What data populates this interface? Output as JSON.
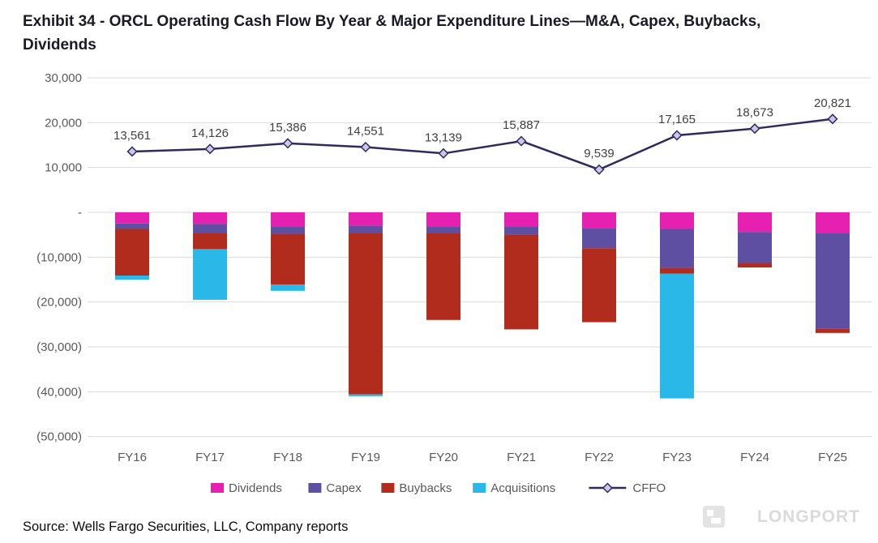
{
  "title": "Exhibit 34 - ORCL Operating Cash Flow By Year & Major Expenditure Lines—M&A, Capex, Buybacks, Dividends",
  "source": "Source: Wells Fargo Securities, LLC, Company reports",
  "watermark": "LONGPORT",
  "colors": {
    "dividends": "#E620B0",
    "capex": "#5E4FA2",
    "buybacks": "#B22C1E",
    "acquisitions": "#29B8E8",
    "cffo_line": "#2E2A5E",
    "cffo_marker_fill": "#CCC7E8",
    "grid": "#D9D9D9",
    "axis_text": "#595959",
    "data_label_text": "#404040"
  },
  "chart_data": {
    "type": "combo: stacked bar (negative outflows) + line (CFFO), values in $ millions",
    "title": "ORCL Operating Cash Flow By Year & Major Expenditure Lines",
    "categories": [
      "FY16",
      "FY17",
      "FY18",
      "FY19",
      "FY20",
      "FY21",
      "FY22",
      "FY23",
      "FY24",
      "FY25"
    ],
    "bar_series": [
      {
        "name": "Dividends",
        "color": "#E620B0",
        "values": [
          -2500,
          -2600,
          -3100,
          -3000,
          -3100,
          -3100,
          -3500,
          -3700,
          -4400,
          -4700
        ]
      },
      {
        "name": "Capex",
        "color": "#5E4FA2",
        "values": [
          -1200,
          -2000,
          -1700,
          -1700,
          -1600,
          -1800,
          -4500,
          -8700,
          -6900,
          -21200
        ]
      },
      {
        "name": "Buybacks",
        "color": "#B22C1E",
        "values": [
          -10400,
          -3600,
          -11300,
          -35900,
          -19300,
          -21200,
          -16500,
          -1300,
          -1000,
          -1000
        ]
      },
      {
        "name": "Acquisitions",
        "color": "#29B8E8",
        "values": [
          -900,
          -11300,
          -1400,
          -400,
          0,
          0,
          0,
          -27800,
          0,
          0
        ]
      }
    ],
    "line_series": {
      "name": "CFFO",
      "color": "#2E2A5E",
      "marker": "diamond",
      "marker_fill": "#CCC7E8",
      "values": [
        13561,
        14126,
        15386,
        14551,
        13139,
        15887,
        9539,
        17165,
        18673,
        20821
      ],
      "labels": [
        "13,561",
        "14,126",
        "15,386",
        "14,551",
        "13,139",
        "15,887",
        "9,539",
        "17,165",
        "18,673",
        "20,821"
      ]
    },
    "y_axis": {
      "min": -50000,
      "max": 30000,
      "ticks": [
        {
          "v": 30000,
          "label": "30,000"
        },
        {
          "v": 20000,
          "label": "20,000"
        },
        {
          "v": 10000,
          "label": "10,000"
        },
        {
          "v": 0,
          "label": "-"
        },
        {
          "v": -10000,
          "label": "(10,000)"
        },
        {
          "v": -20000,
          "label": "(20,000)"
        },
        {
          "v": -30000,
          "label": "(30,000)"
        },
        {
          "v": -40000,
          "label": "(40,000)"
        },
        {
          "v": -50000,
          "label": "(50,000)"
        }
      ]
    },
    "legend": [
      "Dividends",
      "Capex",
      "Buybacks",
      "Acquisitions",
      "CFFO"
    ],
    "legend_position": "bottom-center",
    "grid": true
  }
}
